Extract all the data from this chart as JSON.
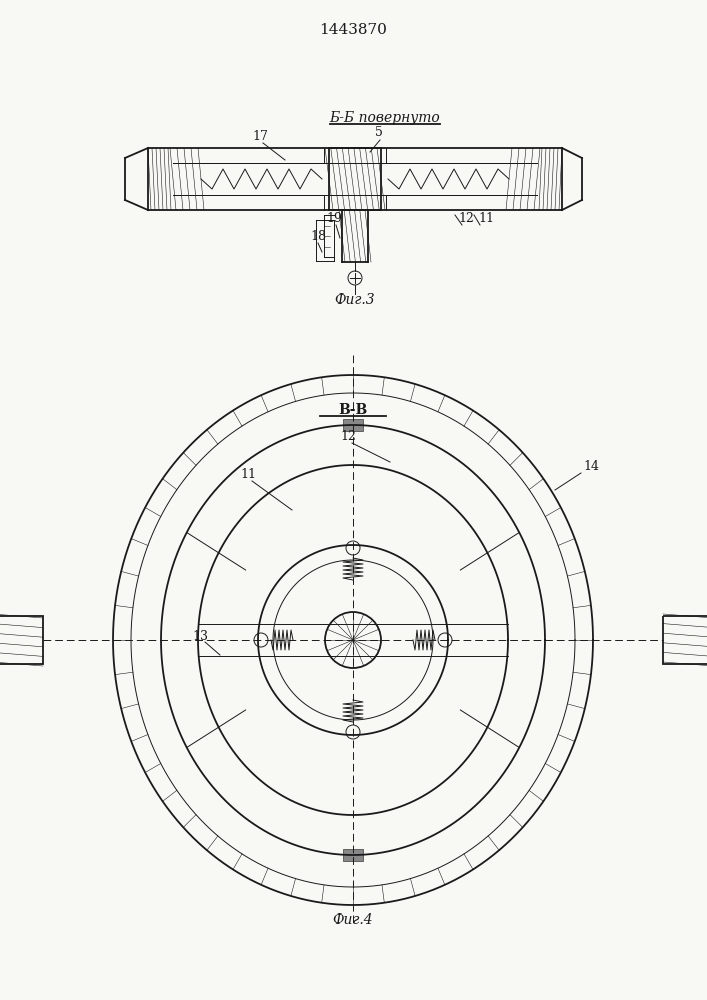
{
  "patent_number": "1443870",
  "fig3_label": "Б-Б повернуто",
  "fig3_caption": "Фиг.3",
  "fig4_label": "В-В",
  "fig4_caption": "Фиг.4",
  "bg_color": "#f8f8f5",
  "line_color": "#1a1a1a"
}
